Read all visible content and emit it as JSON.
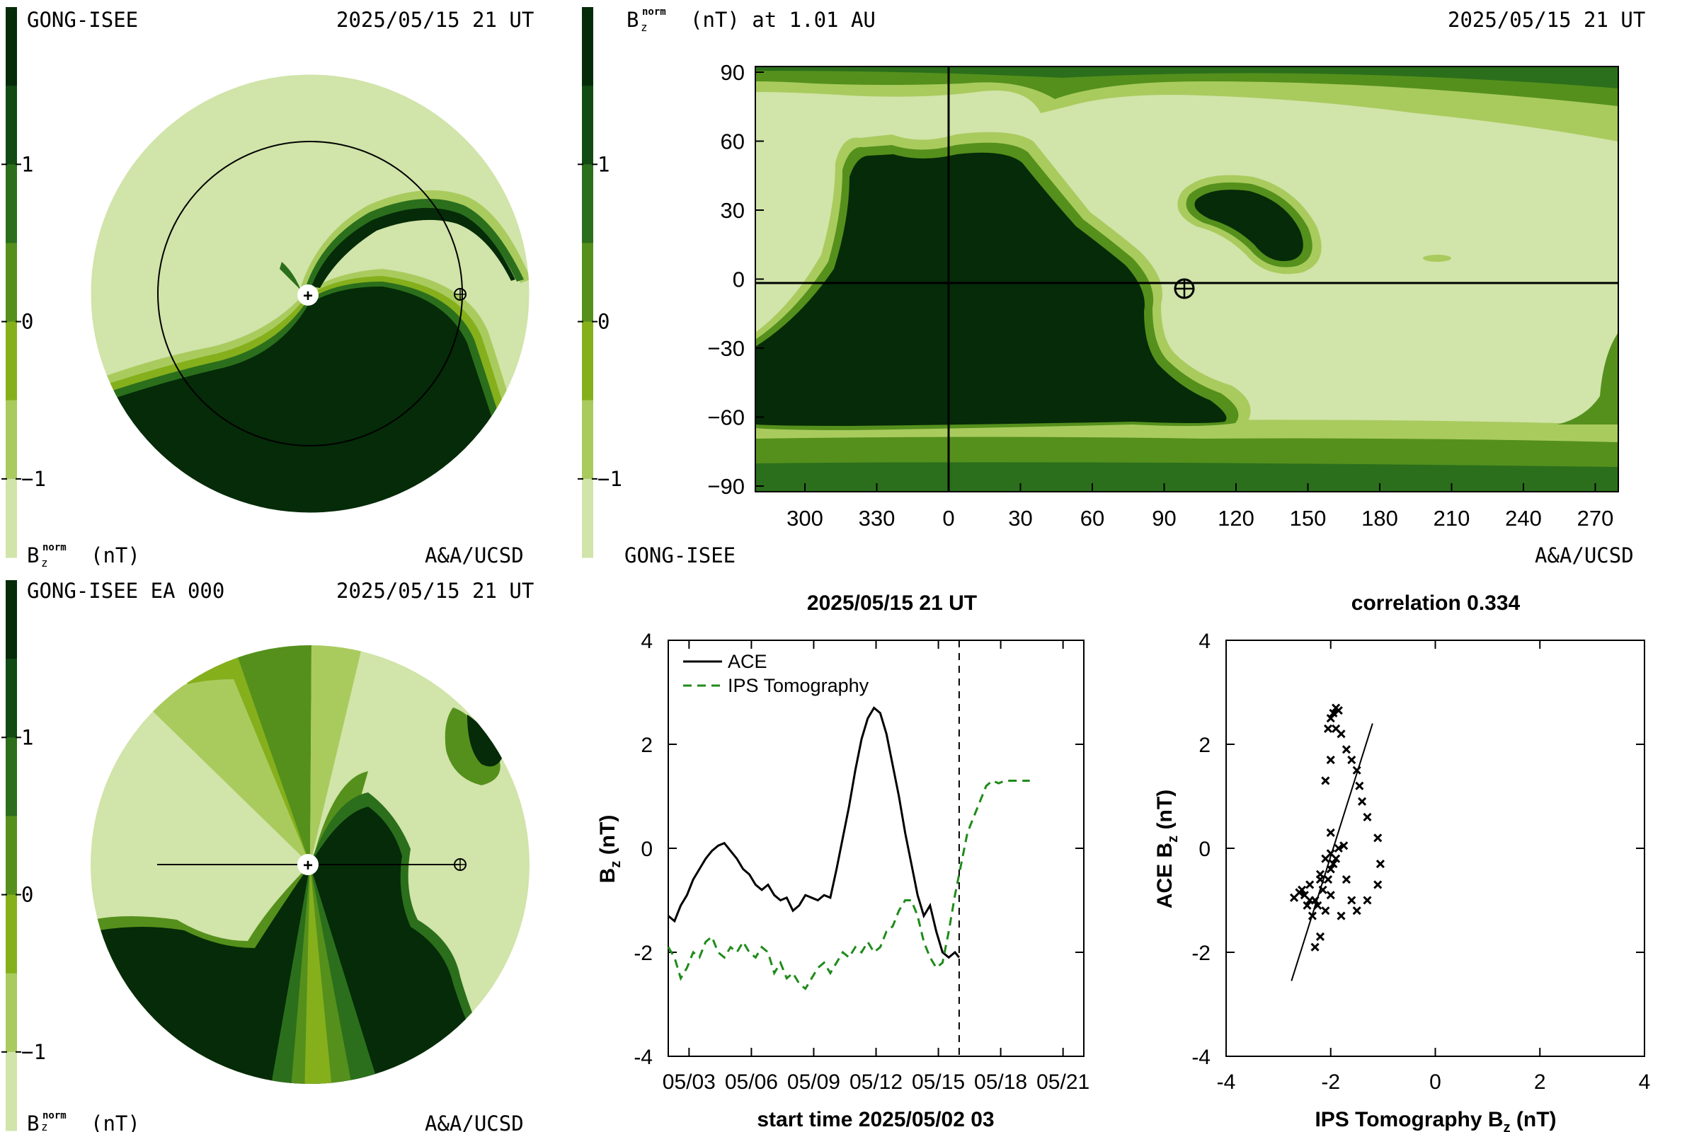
{
  "colors": {
    "scale": [
      "#d1e4a9",
      "#a9cb5e",
      "#85b01c",
      "#55901c",
      "#2b6f1c",
      "#114a12",
      "#052b08"
    ],
    "ace": "#000000",
    "ips": "#1f8b1a",
    "frame": "#000000"
  },
  "legend_bars": {
    "ticks": [
      "1",
      "0",
      "−1"
    ]
  },
  "panel_top_left": {
    "source": "GONG-ISEE",
    "date": "2025/05/15 21 UT",
    "unit_prefix": "B",
    "unit_sub": "z",
    "unit_sup": "norm",
    "unit_suffix": "(nT)",
    "credit": "A&A/UCSD",
    "center_marker": "sun-marker",
    "earth_marker": "earth-marker"
  },
  "panel_top_right": {
    "title_prefix": "B",
    "title_sub": "z",
    "title_sup": "norm",
    "title_suffix": "(nT) at 1.01 AU",
    "date": "2025/05/15 21 UT",
    "source": "GONG-ISEE",
    "credit": "A&A/UCSD",
    "yticks": [
      "90",
      "60",
      "30",
      "0",
      "−30",
      "−60",
      "−90"
    ],
    "xticks": [
      "300",
      "330",
      "0",
      "30",
      "60",
      "90",
      "120",
      "150",
      "180",
      "210",
      "240",
      "270"
    ]
  },
  "panel_bottom_left": {
    "source": "GONG-ISEE EA 000",
    "date": "2025/05/15 21 UT",
    "unit_prefix": "B",
    "unit_sub": "z",
    "unit_sup": "norm",
    "unit_suffix": "(nT)",
    "credit": "A&A/UCSD"
  },
  "chart_data": [
    {
      "type": "line",
      "title": "2025/05/15 21 UT",
      "xlabel": "start time 2025/05/02 03",
      "ylabel_prefix": "B",
      "ylabel_sub": "z",
      "ylabel_suffix": " (nT)",
      "ylim": [
        -4,
        4
      ],
      "xlim": [
        0,
        20
      ],
      "yticks": [
        4,
        2,
        0,
        -2,
        -4
      ],
      "xtick_labels": [
        "05/03",
        "05/06",
        "05/09",
        "05/12",
        "05/15",
        "05/18",
        "05/21"
      ],
      "xtick_positions": [
        1,
        4,
        7,
        10,
        13,
        16,
        19
      ],
      "current_time": 14.0,
      "series": [
        {
          "name": "ACE",
          "style": "solid",
          "x": [
            0.0,
            0.3,
            0.6,
            0.9,
            1.2,
            1.5,
            1.8,
            2.1,
            2.4,
            2.7,
            3.0,
            3.3,
            3.6,
            3.9,
            4.2,
            4.5,
            4.8,
            5.1,
            5.4,
            5.7,
            6.0,
            6.3,
            6.6,
            6.9,
            7.2,
            7.5,
            7.8,
            8.1,
            8.4,
            8.7,
            9.0,
            9.3,
            9.6,
            9.9,
            10.2,
            10.5,
            10.8,
            11.1,
            11.4,
            11.7,
            12.0,
            12.3,
            12.6,
            12.9,
            13.2,
            13.5,
            13.8,
            14.0
          ],
          "y": [
            -1.3,
            -1.4,
            -1.1,
            -0.9,
            -0.6,
            -0.4,
            -0.2,
            -0.05,
            0.05,
            0.1,
            -0.05,
            -0.2,
            -0.4,
            -0.5,
            -0.7,
            -0.8,
            -0.7,
            -0.9,
            -1.0,
            -0.95,
            -1.2,
            -1.1,
            -0.9,
            -0.95,
            -1.0,
            -0.9,
            -0.95,
            -0.4,
            0.2,
            0.8,
            1.5,
            2.1,
            2.5,
            2.7,
            2.6,
            2.2,
            1.6,
            1.0,
            0.3,
            -0.3,
            -0.9,
            -1.3,
            -1.1,
            -1.6,
            -2.0,
            -2.1,
            -2.0,
            -2.1
          ]
        },
        {
          "name": "IPS Tomography",
          "style": "dashed",
          "x": [
            0.0,
            0.3,
            0.6,
            0.9,
            1.2,
            1.5,
            1.8,
            2.1,
            2.4,
            2.7,
            3.0,
            3.3,
            3.6,
            3.9,
            4.2,
            4.5,
            4.8,
            5.1,
            5.4,
            5.7,
            6.0,
            6.3,
            6.6,
            6.9,
            7.2,
            7.5,
            7.8,
            8.1,
            8.4,
            8.7,
            9.0,
            9.3,
            9.6,
            9.9,
            10.2,
            10.5,
            10.8,
            11.1,
            11.4,
            11.7,
            12.0,
            12.3,
            12.6,
            12.9,
            13.2,
            13.5,
            13.8,
            14.1,
            14.4,
            14.7,
            15.0,
            15.3,
            15.6,
            15.9,
            16.2,
            16.5,
            16.8,
            17.1,
            17.4
          ],
          "y": [
            -1.9,
            -2.1,
            -2.5,
            -2.3,
            -2.0,
            -2.1,
            -1.8,
            -1.7,
            -2.0,
            -2.1,
            -1.9,
            -2.0,
            -1.8,
            -2.0,
            -2.1,
            -1.9,
            -2.0,
            -2.4,
            -2.2,
            -2.5,
            -2.4,
            -2.6,
            -2.7,
            -2.5,
            -2.3,
            -2.2,
            -2.4,
            -2.2,
            -2.0,
            -2.1,
            -1.9,
            -2.0,
            -1.8,
            -2.0,
            -1.9,
            -1.6,
            -1.5,
            -1.2,
            -1.0,
            -1.0,
            -1.3,
            -1.8,
            -2.1,
            -2.3,
            -2.2,
            -1.6,
            -0.9,
            -0.3,
            0.3,
            0.6,
            0.9,
            1.2,
            1.3,
            1.25,
            1.3,
            1.3,
            1.3,
            1.3,
            1.3
          ]
        }
      ]
    },
    {
      "type": "scatter",
      "title": "correlation 0.334",
      "xlabel_prefix": "IPS Tomography B",
      "xlabel_sub": "z",
      "xlabel_suffix": " (nT)",
      "ylabel_prefix": "ACE B",
      "ylabel_sub": "z",
      "ylabel_suffix": " (nT)",
      "xlim": [
        -4,
        4
      ],
      "ylim": [
        -4,
        4
      ],
      "xticks": [
        -4,
        -2,
        0,
        2,
        4
      ],
      "yticks": [
        4,
        2,
        0,
        -2,
        -4
      ],
      "fit_line": {
        "x": [
          -2.75,
          -1.2
        ],
        "y": [
          -2.55,
          2.4
        ]
      },
      "points": [
        [
          -1.9,
          2.7
        ],
        [
          -1.95,
          2.6
        ],
        [
          -2.0,
          2.5
        ],
        [
          -1.85,
          2.65
        ],
        [
          -2.05,
          2.3
        ],
        [
          -1.8,
          2.2
        ],
        [
          -1.7,
          1.9
        ],
        [
          -1.6,
          1.7
        ],
        [
          -1.5,
          1.5
        ],
        [
          -1.45,
          1.2
        ],
        [
          -1.4,
          0.9
        ],
        [
          -1.3,
          0.6
        ],
        [
          -1.1,
          0.2
        ],
        [
          -1.05,
          -0.3
        ],
        [
          -1.1,
          -0.7
        ],
        [
          -1.3,
          -1.0
        ],
        [
          -1.5,
          -1.2
        ],
        [
          -1.8,
          -1.3
        ],
        [
          -2.1,
          -1.2
        ],
        [
          -2.3,
          -1.0
        ],
        [
          -2.5,
          -0.9
        ],
        [
          -2.6,
          -0.85
        ],
        [
          -2.4,
          -0.7
        ],
        [
          -2.2,
          -0.5
        ],
        [
          -2.0,
          -0.4
        ],
        [
          -1.9,
          -0.2
        ],
        [
          -1.85,
          0.0
        ],
        [
          -1.95,
          -0.3
        ],
        [
          -2.05,
          -0.6
        ],
        [
          -2.15,
          -0.8
        ],
        [
          -2.25,
          -1.1
        ],
        [
          -2.35,
          -1.3
        ],
        [
          -2.2,
          -1.7
        ],
        [
          -2.3,
          -1.9
        ],
        [
          -2.45,
          -1.1
        ],
        [
          -2.7,
          -0.95
        ],
        [
          -2.55,
          -0.8
        ],
        [
          -2.1,
          -0.2
        ],
        [
          -2.0,
          -0.1
        ],
        [
          -1.75,
          0.05
        ],
        [
          -2.0,
          0.3
        ],
        [
          -2.1,
          1.3
        ],
        [
          -2.0,
          1.7
        ],
        [
          -1.9,
          2.3
        ],
        [
          -2.2,
          -0.6
        ],
        [
          -1.7,
          -0.6
        ],
        [
          -1.6,
          -1.0
        ],
        [
          -2.4,
          -1.0
        ],
        [
          -2.0,
          -0.9
        ]
      ]
    }
  ]
}
